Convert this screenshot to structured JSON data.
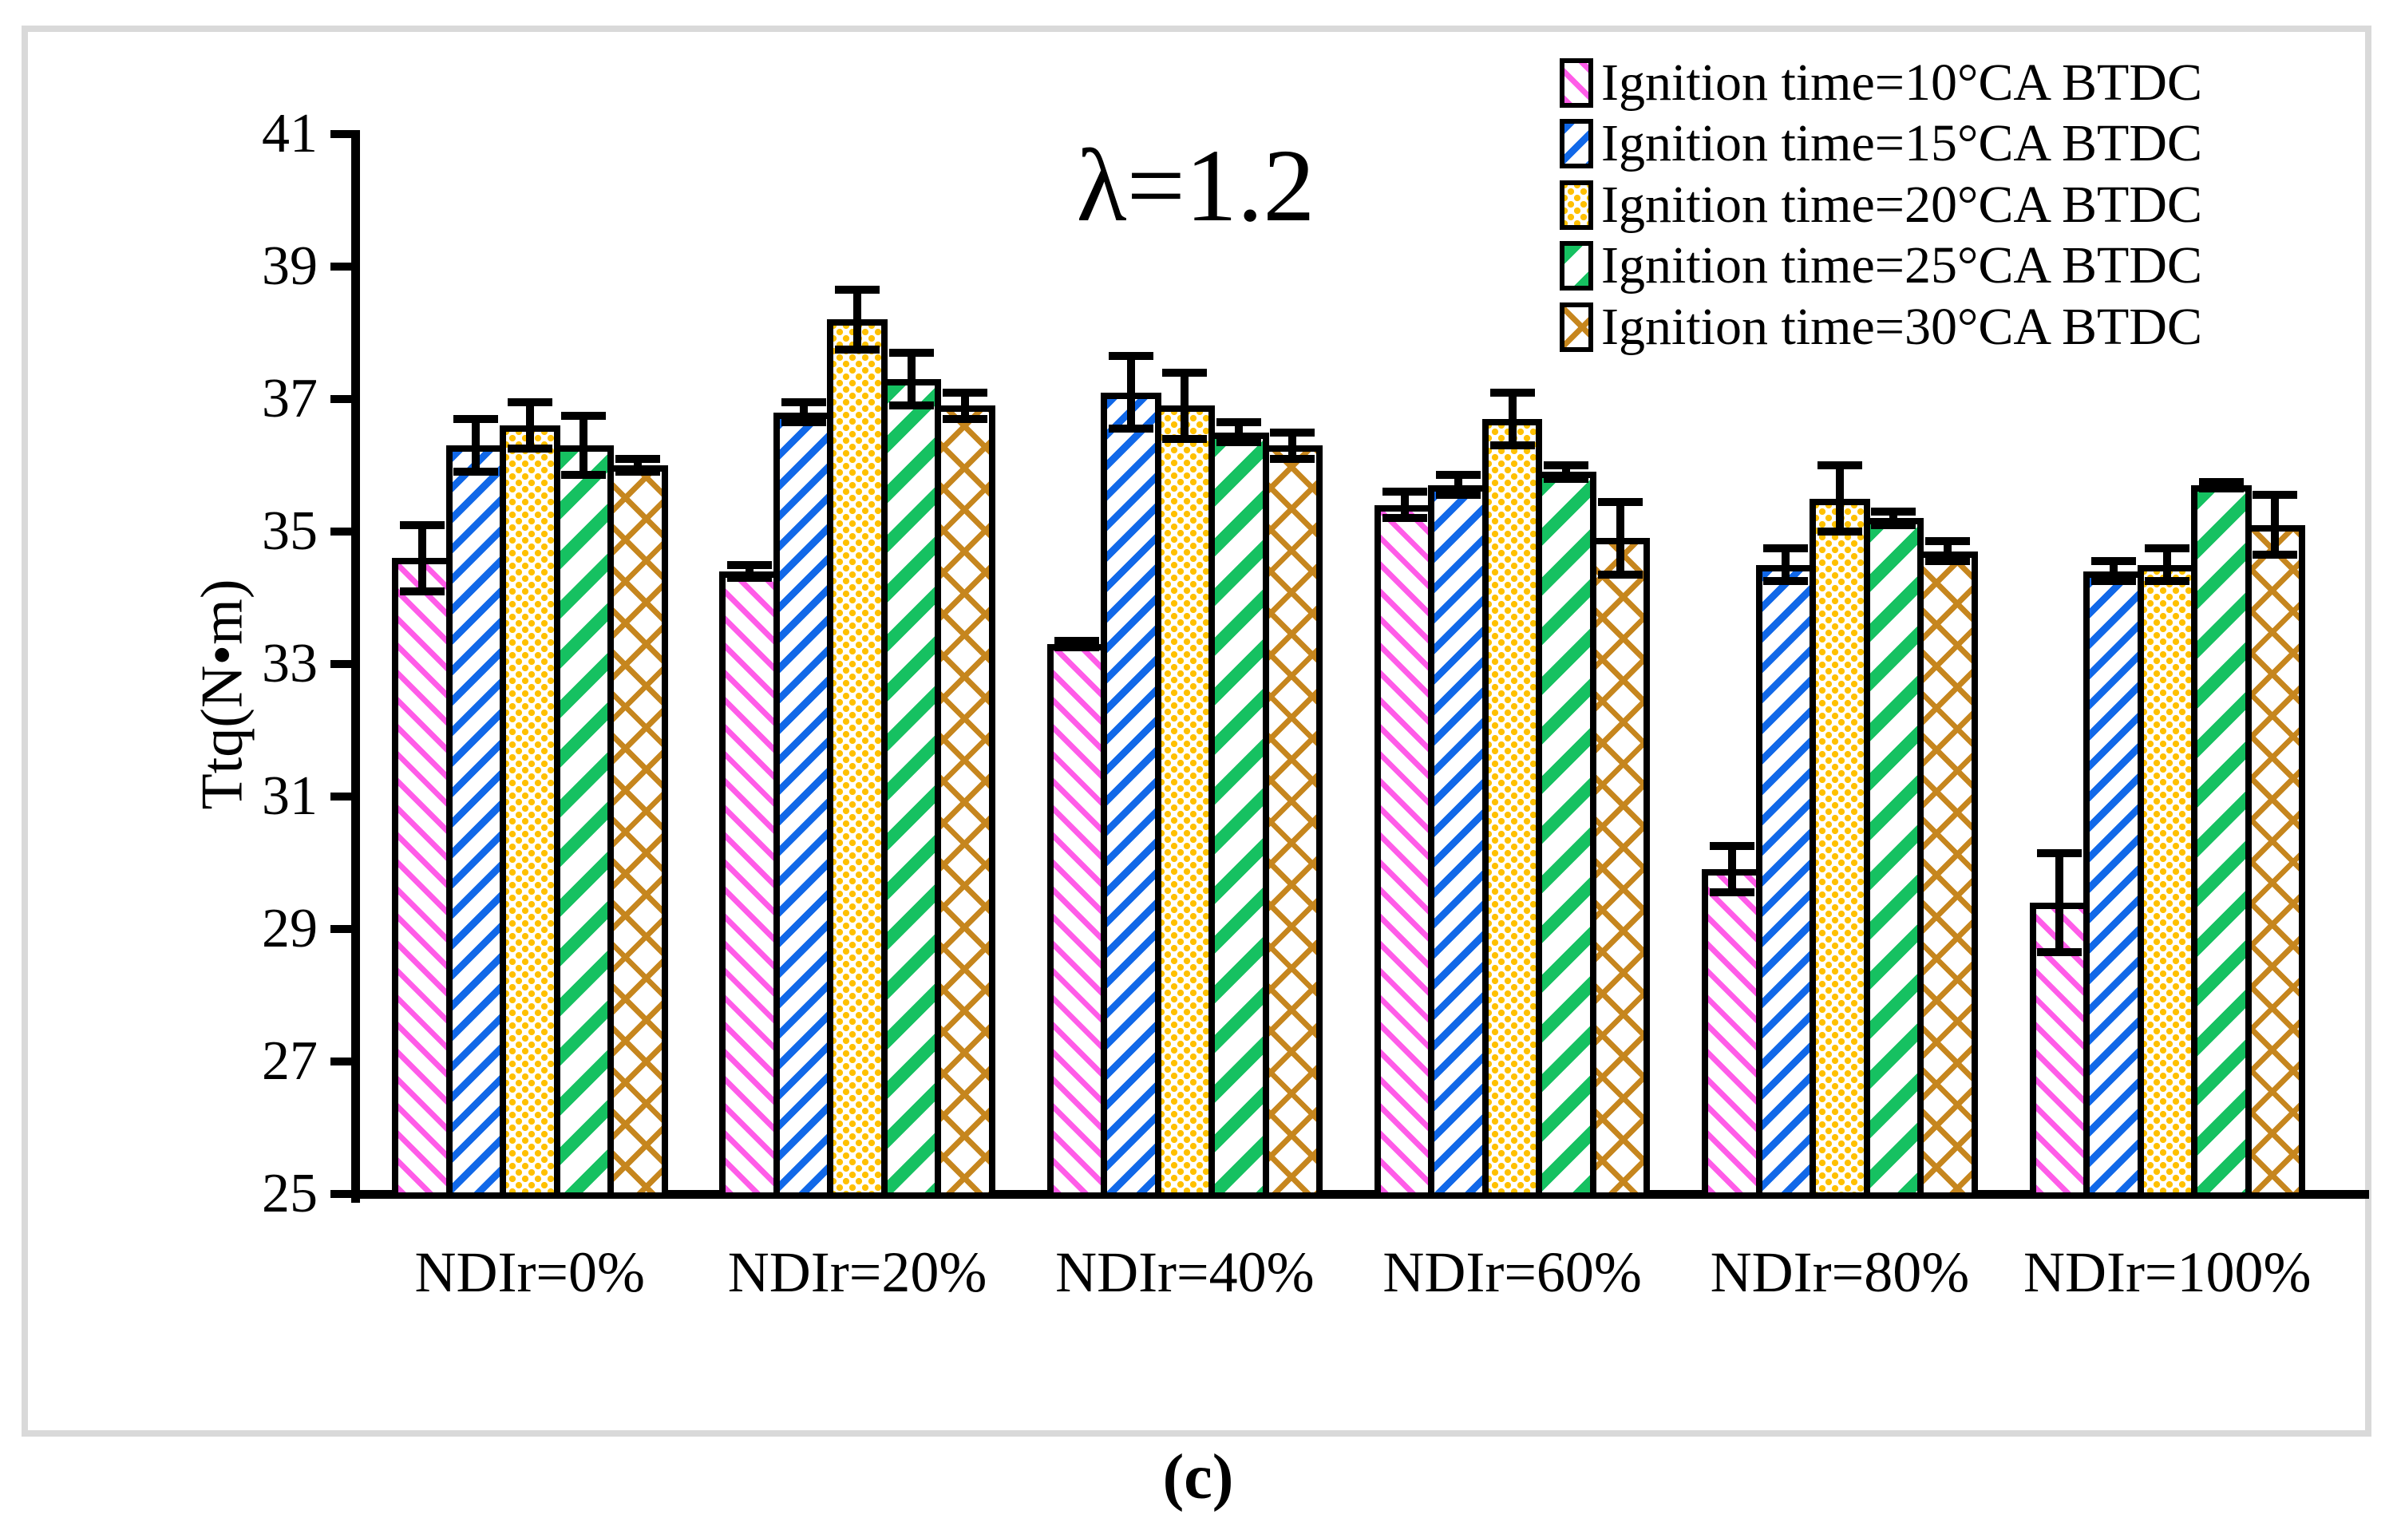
{
  "chart_data": {
    "type": "bar",
    "title": "λ=1.2",
    "ylabel": "Ttq(N•m)",
    "xlabel": "",
    "caption": "(c)",
    "ylim": [
      25,
      41
    ],
    "yticks": [
      25,
      27,
      29,
      31,
      33,
      35,
      37,
      39,
      41
    ],
    "grid": false,
    "legend_position": "top-right",
    "categories": [
      "NDIr=0%",
      "NDIr=20%",
      "NDIr=40%",
      "NDIr=60%",
      "NDIr=80%",
      "NDIr=100%"
    ],
    "series": [
      {
        "name": "Ignition time=10°CA BTDC",
        "color": "#ff5ce8",
        "pattern": "diagonal-down-hatch",
        "values": [
          34.6,
          34.4,
          33.3,
          35.4,
          29.9,
          29.4
        ],
        "errors": [
          0.5,
          0.1,
          0.05,
          0.2,
          0.35,
          0.75
        ]
      },
      {
        "name": "Ignition time=15°CA BTDC",
        "color": "#1168e8",
        "pattern": "diagonal-up-hatch",
        "values": [
          36.3,
          36.8,
          37.1,
          35.7,
          34.5,
          34.4
        ],
        "errors": [
          0.4,
          0.15,
          0.55,
          0.15,
          0.25,
          0.15
        ]
      },
      {
        "name": "Ignition time=20°CA BTDC",
        "color": "#ffc000",
        "pattern": "dotted-checker",
        "values": [
          36.6,
          38.2,
          36.9,
          36.7,
          35.5,
          34.5
        ],
        "errors": [
          0.35,
          0.45,
          0.5,
          0.4,
          0.5,
          0.25
        ]
      },
      {
        "name": "Ignition time=25°CA BTDC",
        "color": "#16c161",
        "pattern": "diagonal-up-bold-hatch",
        "values": [
          36.3,
          37.3,
          36.5,
          35.9,
          35.2,
          35.7
        ],
        "errors": [
          0.45,
          0.4,
          0.15,
          0.1,
          0.1,
          0.05
        ]
      },
      {
        "name": "Ignition time=30°CA BTDC",
        "color": "#c6861e",
        "pattern": "diamond-crosshatch",
        "values": [
          36.0,
          36.9,
          36.3,
          34.9,
          34.7,
          35.1
        ],
        "errors": [
          0.1,
          0.2,
          0.2,
          0.55,
          0.15,
          0.45
        ]
      }
    ]
  }
}
